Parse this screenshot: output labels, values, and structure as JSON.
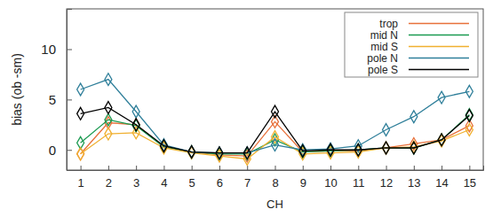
{
  "chart_data": {
    "type": "line",
    "x_label": "CH",
    "y_label": "bias (ob -sm)",
    "categories": [
      "1",
      "2",
      "3",
      "4",
      "5",
      "6",
      "7",
      "8",
      "9",
      "10",
      "11",
      "12",
      "13",
      "14",
      "15"
    ],
    "ylim": [
      -2,
      14
    ],
    "yticks": [
      0,
      5,
      10
    ],
    "legend": "upper right",
    "marker": "diamond",
    "series": [
      {
        "name": "trop",
        "color": "#e8703a",
        "values": [
          -0.4,
          2.7,
          2.5,
          0.3,
          -0.2,
          -0.5,
          -0.6,
          2.8,
          -0.2,
          -0.1,
          -0.1,
          0.2,
          0.6,
          1.0,
          2.4
        ]
      },
      {
        "name": "mid N",
        "color": "#1a9a50",
        "values": [
          0.7,
          3.0,
          2.4,
          0.3,
          -0.2,
          -0.4,
          -0.4,
          1.0,
          -0.2,
          -0.1,
          0.0,
          0.2,
          0.2,
          1.0,
          3.5
        ]
      },
      {
        "name": "mid S",
        "color": "#f0b030",
        "values": [
          -0.4,
          1.6,
          1.7,
          0.2,
          -0.3,
          -0.6,
          -0.9,
          1.3,
          -0.4,
          -0.3,
          -0.2,
          0.2,
          0.3,
          0.9,
          2.0
        ]
      },
      {
        "name": "pole N",
        "color": "#2f7f9a",
        "values": [
          6.0,
          7.0,
          3.8,
          0.5,
          -0.2,
          -0.3,
          -0.3,
          0.5,
          0.0,
          0.1,
          0.4,
          2.0,
          3.3,
          5.2,
          5.8
        ]
      },
      {
        "name": "pole S",
        "color": "#000000",
        "values": [
          3.6,
          4.2,
          2.5,
          0.4,
          -0.2,
          -0.3,
          -0.3,
          3.8,
          -0.1,
          0.0,
          0.0,
          0.2,
          0.2,
          1.0,
          3.4
        ]
      }
    ]
  }
}
